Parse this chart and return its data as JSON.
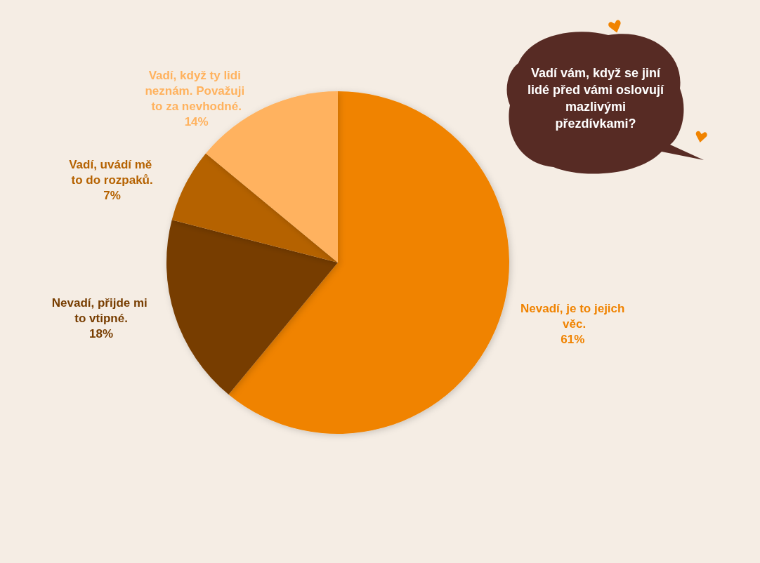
{
  "chart_data": {
    "type": "pie",
    "title": "Vadí vám, když se jiní lidé před vámi oslovují mazlivými přezdívkami?",
    "categories": [
      "Nevadí, je to jejich věc.",
      "Nevadí, přijde mi to vtipné.",
      "Vadí, uvádí mě to do rozpaků.",
      "Vadí, když ty lidi neznám. Považuji to za nevhodné."
    ],
    "values": [
      61,
      18,
      7,
      14
    ],
    "value_labels": [
      "61%",
      "18%",
      "7%",
      "14%"
    ],
    "colors": [
      "#f08300",
      "#773d00",
      "#b56200",
      "#ffb25e"
    ]
  }
}
